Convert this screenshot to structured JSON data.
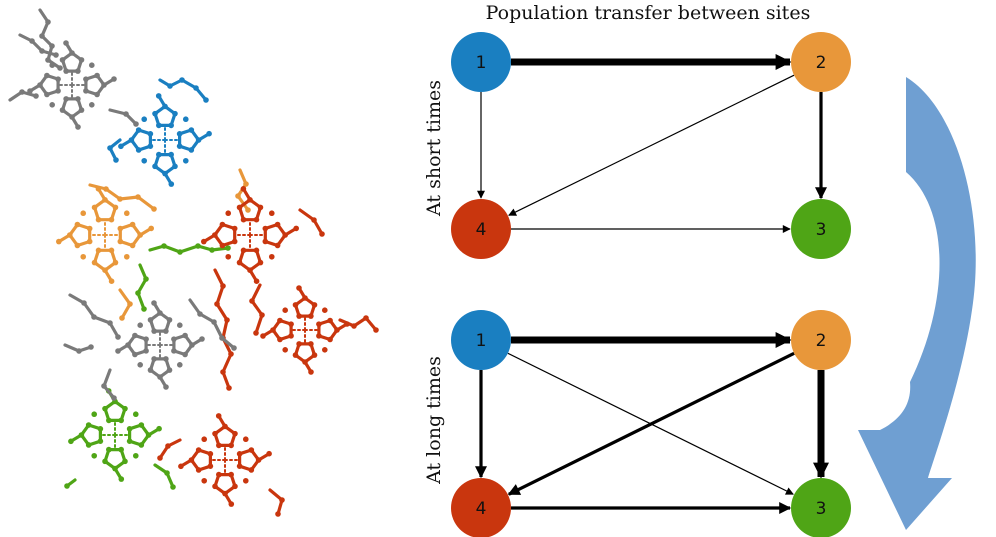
{
  "title": "Population transfer between sites",
  "panels": [
    {
      "label": "At short times",
      "nodes": [
        {
          "id": "1",
          "label": "1",
          "color": "#1a7fc1"
        },
        {
          "id": "2",
          "label": "2",
          "color": "#e8973a"
        },
        {
          "id": "3",
          "label": "3",
          "color": "#4fa516"
        },
        {
          "id": "4",
          "label": "4",
          "color": "#c9360e"
        }
      ],
      "edges": [
        {
          "from": "1",
          "to": "2",
          "weight": "strong"
        },
        {
          "from": "1",
          "to": "4",
          "weight": "weak"
        },
        {
          "from": "2",
          "to": "4",
          "weight": "weak"
        },
        {
          "from": "2",
          "to": "3",
          "weight": "medium"
        },
        {
          "from": "4",
          "to": "3",
          "weight": "weak"
        }
      ]
    },
    {
      "label": "At long times",
      "nodes": [
        {
          "id": "1",
          "label": "1",
          "color": "#1a7fc1"
        },
        {
          "id": "2",
          "label": "2",
          "color": "#e8973a"
        },
        {
          "id": "3",
          "label": "3",
          "color": "#4fa516"
        },
        {
          "id": "4",
          "label": "4",
          "color": "#c9360e"
        }
      ],
      "edges": [
        {
          "from": "1",
          "to": "2",
          "weight": "strong"
        },
        {
          "from": "1",
          "to": "4",
          "weight": "medium"
        },
        {
          "from": "1",
          "to": "3",
          "weight": "weak"
        },
        {
          "from": "2",
          "to": "4",
          "weight": "medium"
        },
        {
          "from": "2",
          "to": "3",
          "weight": "strong"
        },
        {
          "from": "4",
          "to": "3",
          "weight": "medium"
        }
      ]
    }
  ],
  "colors": {
    "site_gray": "#7a7a7a",
    "site_blue": "#1a7fc1",
    "site_orange": "#e8973a",
    "site_green": "#4fa516",
    "site_red": "#c9360e",
    "curved_arrow": "#6f9fd2"
  },
  "molecule_icon": "molecular-structure-image"
}
